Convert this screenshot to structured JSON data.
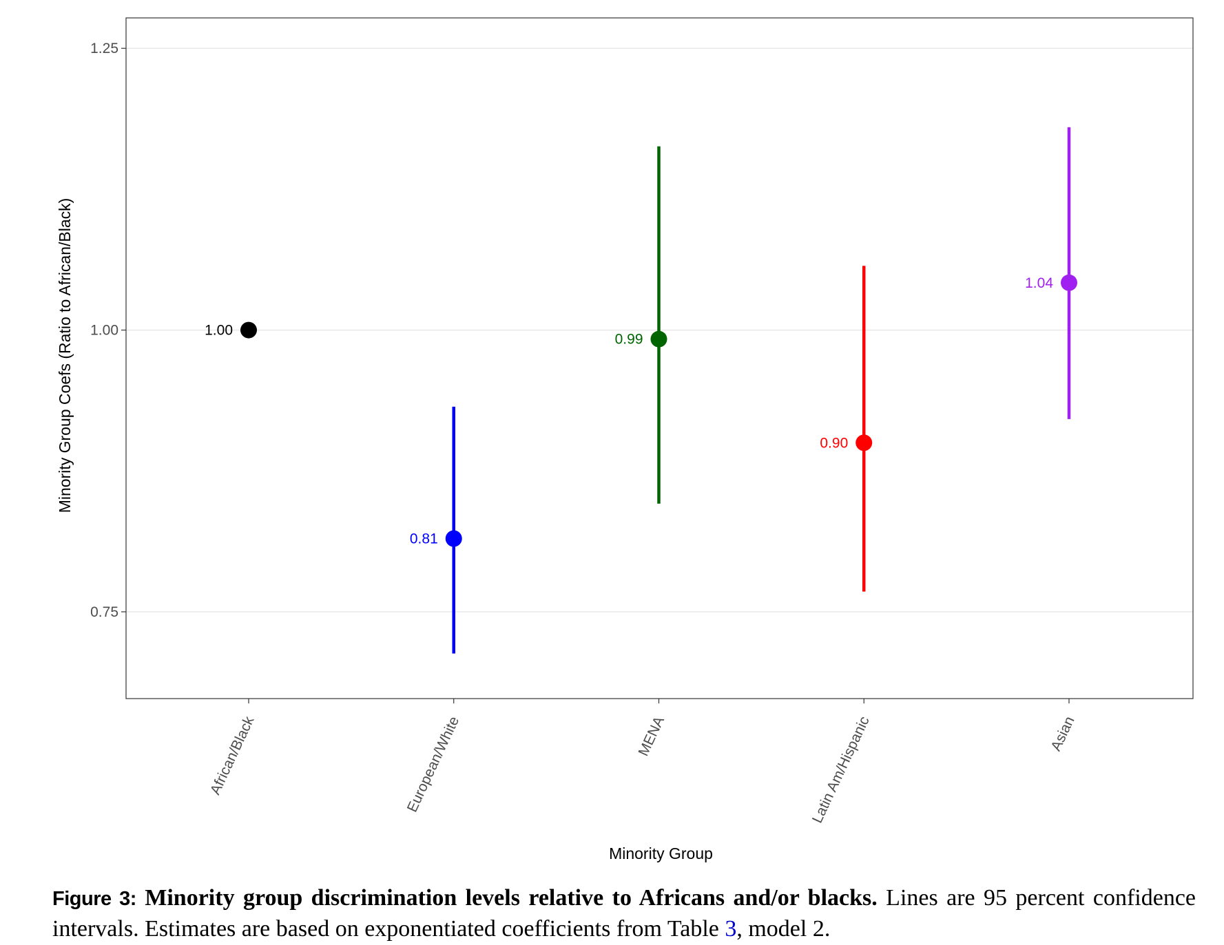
{
  "chart_data": {
    "type": "scatter",
    "subtype": "point-range",
    "title": "",
    "xlabel": "Minority Group",
    "ylabel": "Minority Group Coefs (Ratio to African/Black)",
    "ylim": [
      0.673,
      1.277
    ],
    "yticks": [
      0.75,
      1.0,
      1.25
    ],
    "ytick_labels": [
      "0.75",
      "1.00",
      "1.25"
    ],
    "grid": true,
    "legend": "none",
    "categories": [
      "African/Black",
      "European/White",
      "MENA",
      "Latin Am/Hispanic",
      "Asian"
    ],
    "points": [
      {
        "category": "African/Black",
        "value": 1.0,
        "label": "1.00",
        "lower": null,
        "upper": null,
        "color": "#000000"
      },
      {
        "category": "European/White",
        "value": 0.815,
        "label": "0.81",
        "lower": 0.713,
        "upper": 0.932,
        "color": "#0000ff"
      },
      {
        "category": "MENA",
        "value": 0.992,
        "label": "0.99",
        "lower": 0.846,
        "upper": 1.163,
        "color": "#006400"
      },
      {
        "category": "Latin Am/Hispanic",
        "value": 0.9,
        "label": "0.90",
        "lower": 0.768,
        "upper": 1.057,
        "color": "#ff0000"
      },
      {
        "category": "Asian",
        "value": 1.042,
        "label": "1.04",
        "lower": 0.921,
        "upper": 1.18,
        "color": "#a020f0"
      }
    ]
  },
  "caption": {
    "figure_label": "Figure 3:",
    "bold_text": "Minority group discrimination levels relative to Africans and/or blacks.",
    "text_before_link": "Lines are 95 percent confidence intervals. Estimates are based on exponentiated coefficients from Table ",
    "link_text": "3",
    "text_after_link": ", model 2."
  }
}
